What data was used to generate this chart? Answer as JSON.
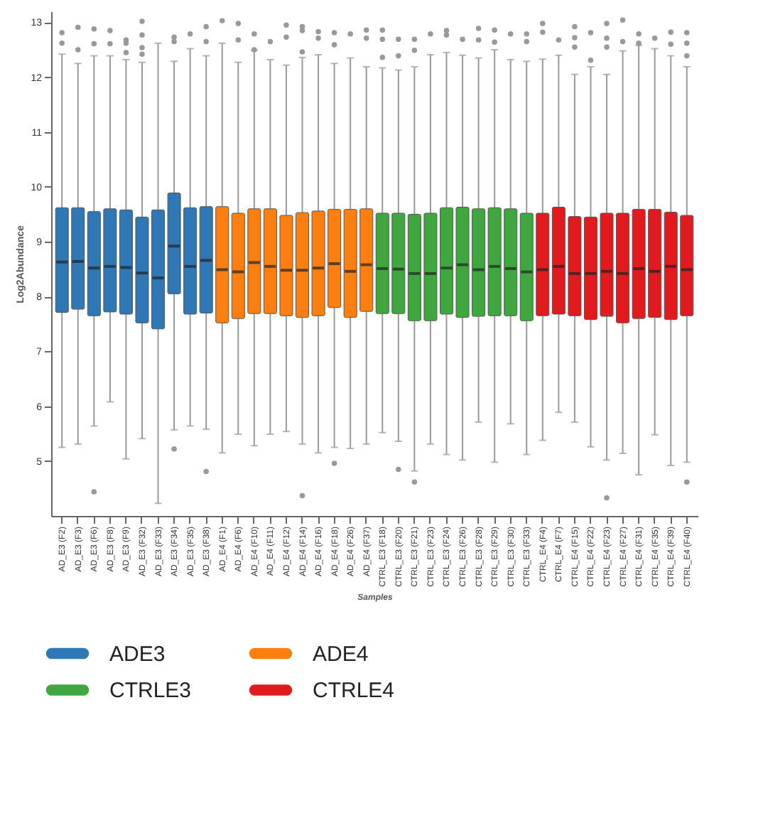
{
  "chart_data": {
    "type": "box",
    "xlabel": "Samples",
    "ylabel": "Log2Abundance",
    "categories": [
      "AD_E3 (F2)",
      "AD_E3 (F3)",
      "AD_E3 (F6)",
      "AD_E3 (F8)",
      "AD_E3 (F9)",
      "AD_E3 (F32)",
      "AD_E3 (F33)",
      "AD_E3 (F34)",
      "AD_E3 (F35)",
      "AD_E3 (F38)",
      "AD_E4 (F1)",
      "AD_E4 (F6)",
      "AD_E4 (F10)",
      "AD_E4 (F11)",
      "AD_E4 (F12)",
      "AD_E4 (F14)",
      "AD_E4 (F16)",
      "AD_E4 (F18)",
      "AD_E4 (F26)",
      "AD_E4 (F37)",
      "CTRL_E3 (F18)",
      "CTRL_E3 (F20)",
      "CTRL_E3 (F21)",
      "CTRL_E3 (F23)",
      "CTRL_E3 (F24)",
      "CTRL_E3 (F26)",
      "CTRL_E3 (F28)",
      "CTRL_E3 (F29)",
      "CTRL_E3 (F30)",
      "CTRL_E3 (F33)",
      "CTRL_E4 (F4)",
      "CTRL_E4 (F7)",
      "CTRL_E4 (F15)",
      "CTRL_E4 (F22)",
      "CTRL_E4 (F23)",
      "CTRL_E4 (F27)",
      "CTRL_E4 (F31)",
      "CTRL_E4 (F35)",
      "CTRL_E4 (F39)",
      "CTRL_E4 (F40)"
    ],
    "ylim": [
      4.0,
      13.2
    ],
    "yticks": [
      5,
      6,
      7,
      8,
      9,
      10,
      11,
      12,
      13
    ],
    "grid": false,
    "legend": "bottom",
    "series": [
      {
        "name": "ADE3",
        "color": "#2e78b7",
        "boxes": [
          {
            "low": 5.25,
            "q1": 7.71,
            "median": 8.63,
            "q3": 9.62,
            "high": 12.42,
            "outliers": [
              12.81,
              12.62
            ]
          },
          {
            "low": 5.31,
            "q1": 7.77,
            "median": 8.64,
            "q3": 9.62,
            "high": 12.25,
            "outliers": [
              12.91,
              12.5
            ]
          },
          {
            "low": 5.64,
            "q1": 7.65,
            "median": 8.52,
            "q3": 9.55,
            "high": 12.39,
            "outliers": [
              12.88,
              12.61,
              4.44
            ]
          },
          {
            "low": 6.08,
            "q1": 7.72,
            "median": 8.55,
            "q3": 9.6,
            "high": 12.39,
            "outliers": [
              12.85,
              12.61
            ]
          },
          {
            "low": 5.04,
            "q1": 7.68,
            "median": 8.53,
            "q3": 9.58,
            "high": 12.32,
            "outliers": [
              12.68,
              12.62,
              12.45
            ]
          },
          {
            "low": 5.41,
            "q1": 7.52,
            "median": 8.43,
            "q3": 9.45,
            "high": 12.27,
            "outliers": [
              13.02,
              12.77,
              12.54,
              12.42
            ]
          },
          {
            "low": 4.23,
            "q1": 7.41,
            "median": 8.34,
            "q3": 9.58,
            "high": 12.62
          },
          {
            "low": 5.57,
            "q1": 8.05,
            "median": 8.92,
            "q3": 9.89,
            "high": 12.29,
            "outliers": [
              12.73,
              12.65,
              5.22
            ]
          },
          {
            "low": 5.64,
            "q1": 7.68,
            "median": 8.55,
            "q3": 9.62,
            "high": 12.52,
            "outliers": [
              12.79
            ]
          },
          {
            "low": 5.58,
            "q1": 7.7,
            "median": 8.66,
            "q3": 9.64,
            "high": 12.39,
            "outliers": [
              12.92,
              12.65,
              4.81
            ]
          },
          null,
          null,
          null,
          null,
          null,
          null,
          null,
          null,
          null,
          null,
          null,
          null,
          null,
          null,
          null,
          null,
          null,
          null,
          null,
          null,
          null,
          null,
          null,
          null,
          null,
          null,
          null,
          null,
          null,
          null
        ]
      },
      {
        "name": "ADE4",
        "color": "#ff7f0e",
        "boxes": [
          null,
          null,
          null,
          null,
          null,
          null,
          null,
          null,
          null,
          null,
          {
            "low": 5.15,
            "q1": 7.52,
            "median": 8.49,
            "q3": 9.64,
            "high": 12.62,
            "outliers": [
              13.03
            ]
          },
          {
            "low": 5.49,
            "q1": 7.6,
            "median": 8.45,
            "q3": 9.52,
            "high": 12.27,
            "outliers": [
              12.98,
              12.68
            ]
          },
          {
            "low": 5.28,
            "q1": 7.69,
            "median": 8.62,
            "q3": 9.6,
            "high": 12.49,
            "outliers": [
              12.79,
              12.5
            ]
          },
          {
            "low": 5.49,
            "q1": 7.69,
            "median": 8.55,
            "q3": 9.6,
            "high": 12.32,
            "outliers": [
              12.65
            ]
          },
          {
            "low": 5.54,
            "q1": 7.65,
            "median": 8.48,
            "q3": 9.48,
            "high": 12.22,
            "outliers": [
              12.95,
              12.73
            ]
          },
          {
            "low": 5.31,
            "q1": 7.62,
            "median": 8.48,
            "q3": 9.53,
            "high": 12.36,
            "outliers": [
              12.92,
              12.85,
              12.46,
              4.37
            ]
          },
          {
            "low": 5.15,
            "q1": 7.65,
            "median": 8.52,
            "q3": 9.56,
            "high": 12.41,
            "outliers": [
              12.83,
              12.71
            ]
          },
          {
            "low": 5.25,
            "q1": 7.8,
            "median": 8.6,
            "q3": 9.59,
            "high": 12.25,
            "outliers": [
              12.81,
              12.59,
              4.96
            ]
          },
          {
            "low": 5.23,
            "q1": 7.62,
            "median": 8.46,
            "q3": 9.59,
            "high": 12.35,
            "outliers": [
              12.79
            ]
          },
          {
            "low": 5.31,
            "q1": 7.73,
            "median": 8.58,
            "q3": 9.6,
            "high": 12.19,
            "outliers": [
              12.86,
              12.71
            ]
          },
          null,
          null,
          null,
          null,
          null,
          null,
          null,
          null,
          null,
          null,
          null,
          null,
          null,
          null,
          null,
          null,
          null,
          null,
          null,
          null
        ]
      },
      {
        "name": "CTRLE3",
        "color": "#3ea83e",
        "boxes": [
          null,
          null,
          null,
          null,
          null,
          null,
          null,
          null,
          null,
          null,
          null,
          null,
          null,
          null,
          null,
          null,
          null,
          null,
          null,
          null,
          {
            "low": 5.52,
            "q1": 7.69,
            "median": 8.51,
            "q3": 9.52,
            "high": 12.17,
            "outliers": [
              12.86,
              12.69,
              12.36
            ]
          },
          {
            "low": 5.36,
            "q1": 7.69,
            "median": 8.5,
            "q3": 9.52,
            "high": 12.13,
            "outliers": [
              12.69,
              12.39,
              4.85
            ]
          },
          {
            "low": 4.82,
            "q1": 7.56,
            "median": 8.42,
            "q3": 9.5,
            "high": 12.19,
            "outliers": [
              12.69,
              12.49,
              4.62
            ]
          },
          {
            "low": 5.31,
            "q1": 7.56,
            "median": 8.42,
            "q3": 9.52,
            "high": 12.41,
            "outliers": [
              12.79
            ]
          },
          {
            "low": 5.12,
            "q1": 7.68,
            "median": 8.52,
            "q3": 9.62,
            "high": 12.45,
            "outliers": [
              12.85,
              12.77
            ]
          },
          {
            "low": 5.02,
            "q1": 7.62,
            "median": 8.58,
            "q3": 9.63,
            "high": 12.4,
            "outliers": [
              12.69
            ]
          },
          {
            "low": 5.71,
            "q1": 7.64,
            "median": 8.49,
            "q3": 9.6,
            "high": 12.35,
            "outliers": [
              12.89,
              12.68
            ]
          },
          {
            "low": 4.98,
            "q1": 7.65,
            "median": 8.55,
            "q3": 9.62,
            "high": 12.5,
            "outliers": [
              12.86,
              12.64
            ]
          },
          {
            "low": 5.68,
            "q1": 7.65,
            "median": 8.51,
            "q3": 9.6,
            "high": 12.32,
            "outliers": [
              12.79
            ]
          },
          {
            "low": 5.12,
            "q1": 7.56,
            "median": 8.45,
            "q3": 9.52,
            "high": 12.29,
            "outliers": [
              12.79,
              12.65
            ]
          },
          null,
          null,
          null,
          null,
          null,
          null,
          null,
          null,
          null,
          null
        ]
      },
      {
        "name": "CTRLE4",
        "color": "#e31a1c",
        "boxes": [
          null,
          null,
          null,
          null,
          null,
          null,
          null,
          null,
          null,
          null,
          null,
          null,
          null,
          null,
          null,
          null,
          null,
          null,
          null,
          null,
          null,
          null,
          null,
          null,
          null,
          null,
          null,
          null,
          null,
          null,
          {
            "low": 5.38,
            "q1": 7.65,
            "median": 8.49,
            "q3": 9.52,
            "high": 12.33,
            "outliers": [
              12.98,
              12.82
            ]
          },
          {
            "low": 5.89,
            "q1": 7.68,
            "median": 8.55,
            "q3": 9.63,
            "high": 12.4,
            "outliers": [
              12.68
            ]
          },
          {
            "low": 5.71,
            "q1": 7.65,
            "median": 8.42,
            "q3": 9.46,
            "high": 12.05,
            "outliers": [
              12.92,
              12.72,
              12.55
            ]
          },
          {
            "low": 5.26,
            "q1": 7.58,
            "median": 8.42,
            "q3": 9.45,
            "high": 12.19,
            "outliers": [
              12.81,
              12.31
            ]
          },
          {
            "low": 5.02,
            "q1": 7.64,
            "median": 8.46,
            "q3": 9.52,
            "high": 12.05,
            "outliers": [
              12.98,
              12.71,
              12.55,
              4.33
            ]
          },
          {
            "low": 5.14,
            "q1": 7.52,
            "median": 8.42,
            "q3": 9.52,
            "high": 12.48,
            "outliers": [
              13.04,
              12.65
            ]
          },
          {
            "low": 4.75,
            "q1": 7.6,
            "median": 8.51,
            "q3": 9.59,
            "high": 12.58,
            "outliers": [
              12.79,
              12.62
            ]
          },
          {
            "low": 5.48,
            "q1": 7.62,
            "median": 8.46,
            "q3": 9.59,
            "high": 12.52,
            "outliers": [
              12.71
            ]
          },
          {
            "low": 4.92,
            "q1": 7.58,
            "median": 8.55,
            "q3": 9.54,
            "high": 12.39,
            "outliers": [
              12.82,
              12.6
            ]
          },
          {
            "low": 4.98,
            "q1": 7.65,
            "median": 8.49,
            "q3": 9.48,
            "high": 12.19,
            "outliers": [
              12.81,
              12.62,
              12.39,
              4.62
            ]
          }
        ]
      }
    ]
  }
}
